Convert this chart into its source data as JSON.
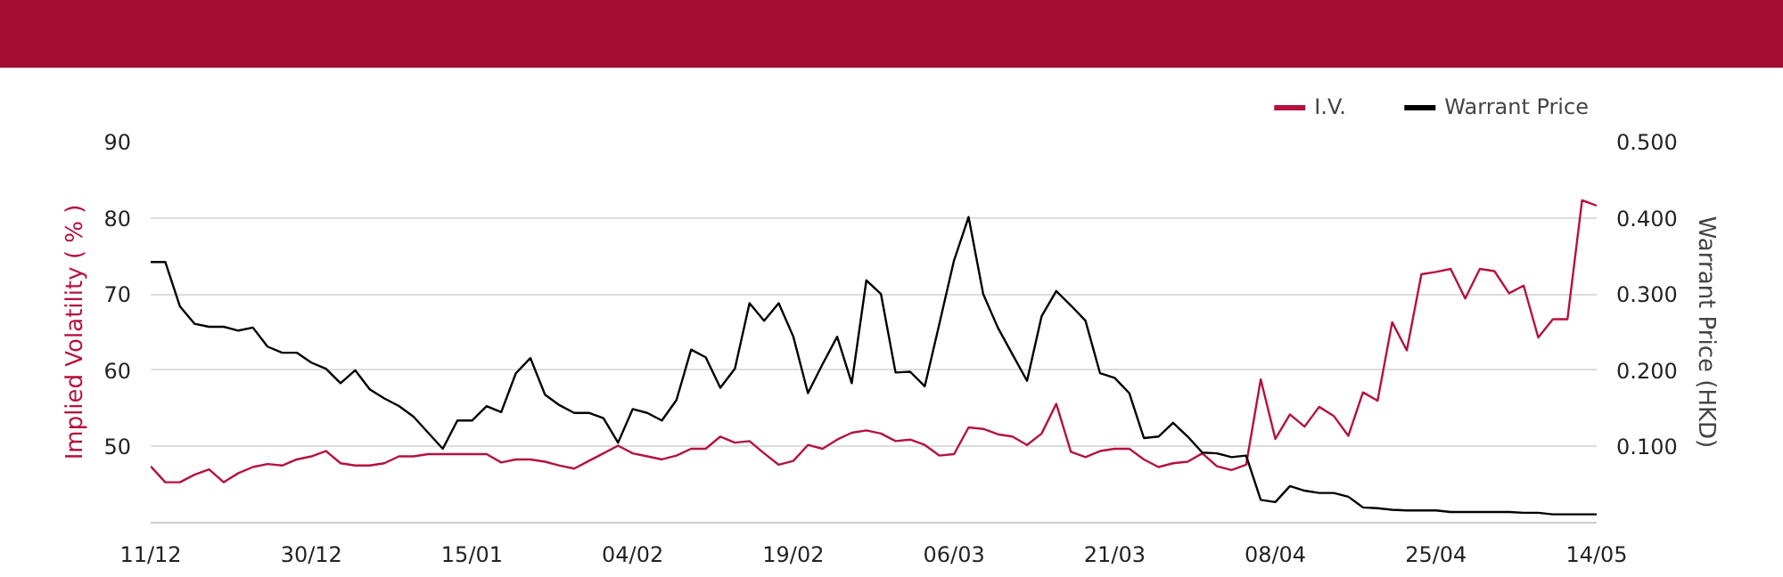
{
  "chart_data": {
    "type": "line",
    "categories": [
      "11/12",
      null,
      null,
      null,
      null,
      null,
      null,
      null,
      null,
      null,
      null,
      "30/12",
      null,
      null,
      null,
      null,
      null,
      null,
      null,
      null,
      null,
      null,
      "15/01",
      null,
      null,
      null,
      null,
      null,
      null,
      null,
      null,
      null,
      null,
      "04/02",
      null,
      null,
      null,
      null,
      null,
      null,
      null,
      null,
      null,
      null,
      "19/02",
      null,
      null,
      null,
      null,
      null,
      null,
      null,
      null,
      null,
      null,
      "06/03",
      null,
      null,
      null,
      null,
      null,
      null,
      null,
      null,
      null,
      null,
      "21/03",
      null,
      null,
      null,
      null,
      null,
      null,
      null,
      null,
      null,
      null,
      "08/04",
      null,
      null,
      null,
      null,
      null,
      null,
      null,
      null,
      null,
      null,
      "25/04",
      null,
      null,
      null,
      null,
      null,
      null,
      null,
      null,
      null,
      null,
      "14/05"
    ],
    "ylabel": "Implied Volatility ( % )",
    "y2label": "Warrant Price (HKD)",
    "ylim": [
      40,
      90
    ],
    "yticks": [
      50,
      60,
      70,
      80,
      90
    ],
    "y2lim": [
      0,
      0.5
    ],
    "y2ticks": [
      {
        "value": 0.1,
        "label": "0.100"
      },
      {
        "value": 0.2,
        "label": "0.200"
      },
      {
        "value": 0.3,
        "label": "0.300"
      },
      {
        "value": 0.4,
        "label": "0.400"
      },
      {
        "value": 0.5,
        "label": "0.500"
      }
    ],
    "grid": "y",
    "legend": "top right",
    "marker": "none",
    "line_style": "solid",
    "series": [
      {
        "name": "I.V.",
        "color": "#b5123e",
        "values": [
          47.4,
          45.3,
          45.3,
          46.3,
          47.0,
          45.3,
          46.5,
          47.3,
          47.7,
          47.5,
          48.3,
          48.7,
          49.4,
          47.8,
          47.5,
          47.5,
          47.8,
          48.7,
          48.7,
          49.0,
          49.0,
          49.0,
          49.0,
          49.0,
          47.9,
          48.3,
          48.3,
          48.0,
          47.5,
          47.1,
          48.1,
          49.1,
          50.1,
          49.1,
          48.7,
          48.3,
          48.8,
          49.7,
          49.7,
          51.3,
          50.5,
          50.7,
          49.1,
          47.6,
          48.1,
          50.2,
          49.7,
          50.9,
          51.8,
          52.1,
          51.7,
          50.7,
          50.9,
          50.2,
          48.8,
          49.0,
          52.5,
          52.3,
          51.6,
          51.3,
          50.2,
          51.7,
          55.6,
          49.3,
          48.6,
          49.4,
          49.7,
          49.7,
          48.3,
          47.3,
          47.8,
          48.0,
          49.1,
          47.4,
          46.9,
          47.6,
          58.8,
          51.0,
          54.2,
          52.6,
          55.2,
          54.0,
          51.4,
          57.1,
          56.0,
          66.3,
          62.6,
          72.6,
          72.9,
          73.3,
          69.4,
          73.3,
          73.0,
          70.1,
          71.1,
          64.3,
          66.7,
          66.7,
          82.3,
          81.6
        ]
      },
      {
        "name": "Warrant Price",
        "color": "#000000",
        "axis": "y2",
        "values": [
          0.342,
          0.342,
          0.284,
          0.261,
          0.257,
          0.257,
          0.252,
          0.256,
          0.231,
          0.223,
          0.223,
          0.21,
          0.202,
          0.183,
          0.2,
          0.175,
          0.163,
          0.153,
          0.139,
          0.118,
          0.097,
          0.134,
          0.134,
          0.153,
          0.145,
          0.196,
          0.216,
          0.168,
          0.154,
          0.144,
          0.144,
          0.137,
          0.105,
          0.149,
          0.144,
          0.134,
          0.161,
          0.227,
          0.217,
          0.177,
          0.202,
          0.288,
          0.265,
          0.288,
          0.244,
          0.17,
          0.208,
          0.244,
          0.183,
          0.318,
          0.3,
          0.197,
          0.198,
          0.179,
          0.261,
          0.344,
          0.401,
          0.3,
          0.256,
          0.221,
          0.186,
          0.271,
          0.304,
          0.285,
          0.265,
          0.196,
          0.19,
          0.17,
          0.111,
          0.113,
          0.131,
          0.113,
          0.092,
          0.091,
          0.086,
          0.088,
          0.03,
          0.027,
          0.048,
          0.042,
          0.039,
          0.039,
          0.034,
          0.02,
          0.019,
          0.017,
          0.016,
          0.016,
          0.016,
          0.014,
          0.014,
          0.014,
          0.014,
          0.014,
          0.013,
          0.013,
          0.011,
          0.011,
          0.011,
          0.011
        ]
      }
    ]
  }
}
